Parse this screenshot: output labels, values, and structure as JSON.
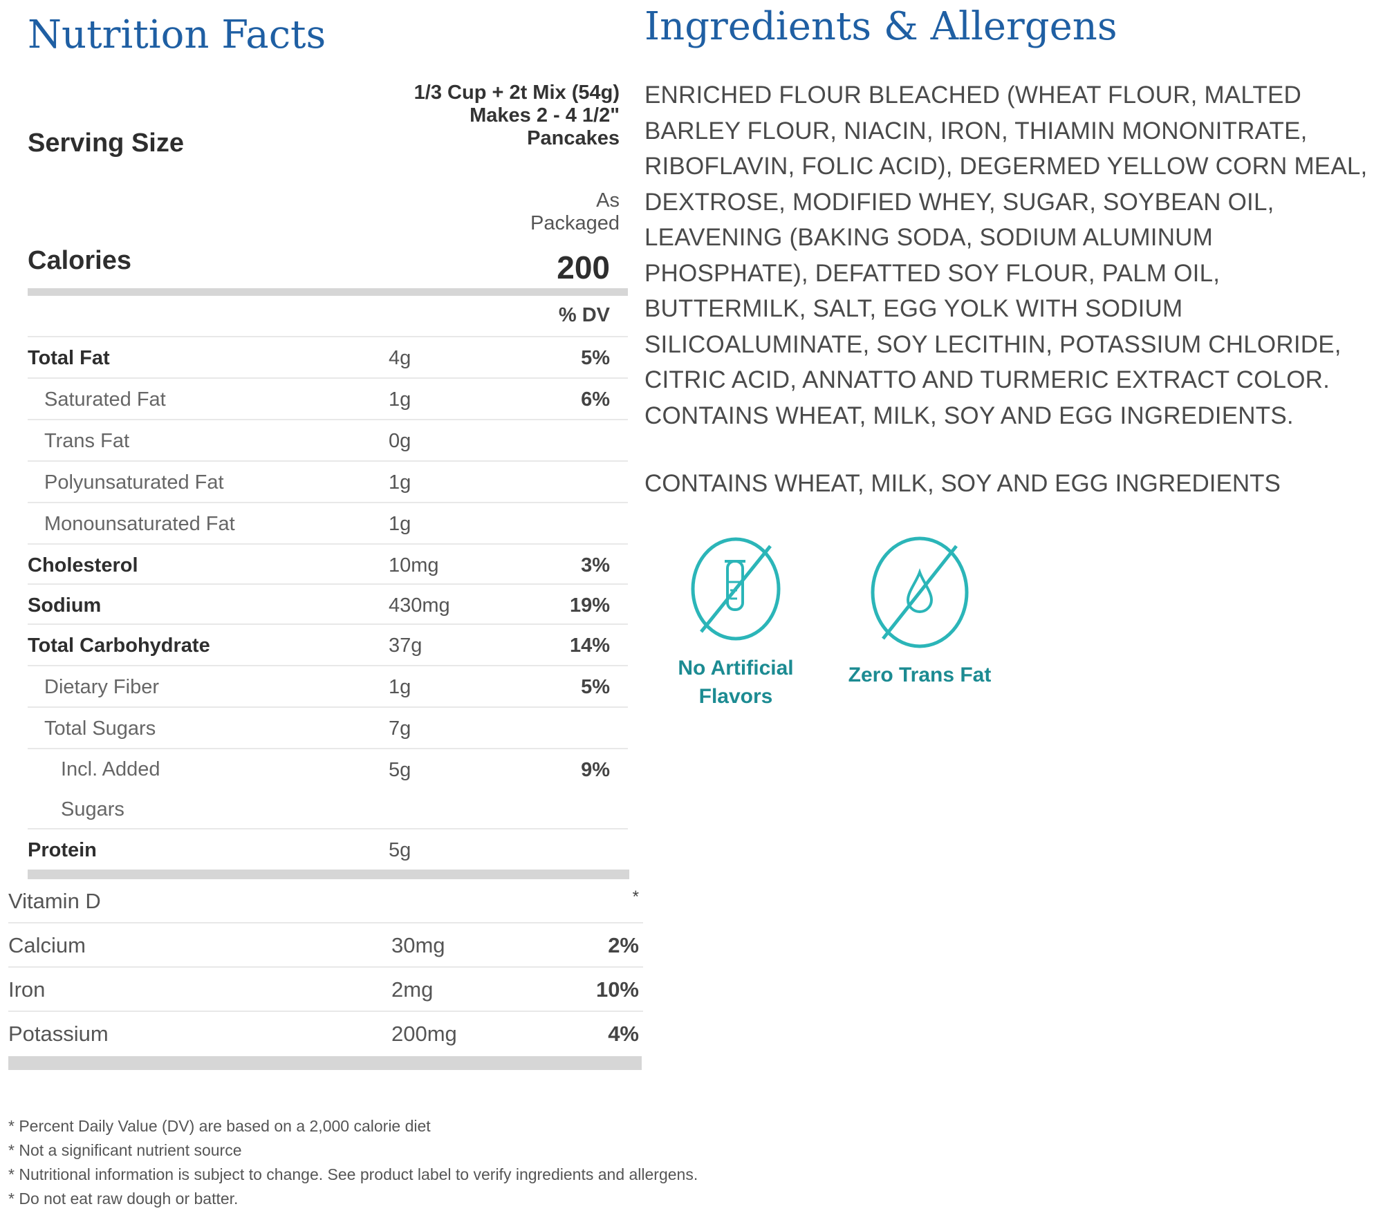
{
  "nutrition": {
    "title": "Nutrition Facts",
    "serving_size_label": "Serving Size",
    "serving_size_lines": [
      "1/3 Cup + 2t Mix (54g)",
      "Makes 2 - 4 1/2\"",
      "Pancakes"
    ],
    "as_packaged_lines": [
      "As",
      "Packaged"
    ],
    "calories_label": "Calories",
    "calories_value": "200",
    "dv_header": "% DV",
    "rows": [
      {
        "name": "Total Fat",
        "amount": "4g",
        "dv": "5%"
      },
      {
        "name": "Saturated Fat",
        "amount": "1g",
        "dv": "6%"
      },
      {
        "name": "Trans Fat",
        "amount": "0g",
        "dv": ""
      },
      {
        "name": "Polyunsaturated Fat",
        "amount": "1g",
        "dv": ""
      },
      {
        "name": "Monounsaturated Fat",
        "amount": "1g",
        "dv": ""
      },
      {
        "name": "Cholesterol",
        "amount": "10mg",
        "dv": "3%"
      },
      {
        "name": "Sodium",
        "amount": "430mg",
        "dv": "19%"
      },
      {
        "name": "Total Carbohydrate",
        "amount": "37g",
        "dv": "14%"
      },
      {
        "name": "Dietary Fiber",
        "amount": "1g",
        "dv": "5%"
      },
      {
        "name": "Total Sugars",
        "amount": "7g",
        "dv": ""
      },
      {
        "name_lines": [
          "Incl. Added",
          "Sugars"
        ],
        "amount": "5g",
        "dv": "9%"
      },
      {
        "name": "Protein",
        "amount": "5g",
        "dv": ""
      }
    ],
    "vitamins": [
      {
        "name": "Vitamin D",
        "amount": "",
        "dv": "*"
      },
      {
        "name": "Calcium",
        "amount": "30mg",
        "dv": "2%"
      },
      {
        "name": "Iron",
        "amount": "2mg",
        "dv": "10%"
      },
      {
        "name": "Potassium",
        "amount": "200mg",
        "dv": "4%"
      }
    ],
    "footnotes": [
      "* Percent Daily Value (DV) are based on a 2,000 calorie diet",
      "* Not a significant nutrient source",
      "* Nutritional information is subject to change. See product label to verify ingredients and allergens.",
      "* Do not eat raw dough or batter."
    ]
  },
  "ingredients": {
    "title": "Ingredients & Allergens",
    "text": "ENRICHED FLOUR BLEACHED (WHEAT FLOUR, MALTED BARLEY FLOUR, NIACIN, IRON, THIAMIN MONONITRATE, RIBOFLAVIN, FOLIC ACID), DEGERMED YELLOW CORN MEAL, DEXTROSE, MODIFIED WHEY, SUGAR, SOYBEAN OIL, LEAVENING (BAKING SODA, SODIUM ALUMINUM PHOSPHATE), DEFATTED SOY FLOUR, PALM OIL, BUTTERMILK, SALT, EGG YOLK WITH SODIUM SILICOALUMINATE, SOY LECITHIN, POTASSIUM CHLORIDE, CITRIC ACID, ANNATTO AND TURMERIC EXTRACT COLOR. CONTAINS WHEAT, MILK, SOY AND EGG INGREDIENTS.",
    "contains": "CONTAINS WHEAT, MILK, SOY AND EGG INGREDIENTS",
    "badges": [
      {
        "icon": "no-test-tube-icon",
        "label_lines": [
          "No Artificial",
          "Flavors"
        ]
      },
      {
        "icon": "no-oil-drop-icon",
        "label_lines": [
          "Zero Trans Fat"
        ]
      }
    ],
    "badge_color": "#2bb5b8",
    "badge_text_color": "#1c8b92"
  },
  "colors": {
    "heading": "#1f5fa3",
    "divider_bar": "#d6d6d6",
    "row_rule": "#e8e8e8"
  }
}
